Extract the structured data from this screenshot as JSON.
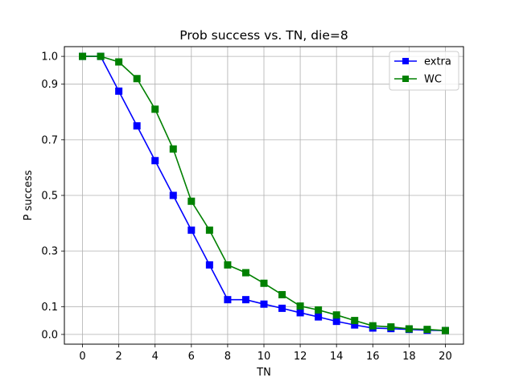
{
  "chart_data": {
    "type": "line",
    "title": "Prob success vs. TN, die=8",
    "xlabel": "TN",
    "ylabel": "P success",
    "xlim": [
      -1,
      21
    ],
    "ylim": [
      -0.035,
      1.035
    ],
    "xticks": [
      0,
      2,
      4,
      6,
      8,
      10,
      12,
      14,
      16,
      18,
      20
    ],
    "yticks": [
      0.0,
      0.1,
      0.3,
      0.5,
      0.7,
      0.9,
      1.0
    ],
    "ytick_labels": [
      "0.0",
      "0.1",
      "0.3",
      "0.5",
      "0.7",
      "0.9",
      "1.0"
    ],
    "grid": true,
    "legend_position": "top-right",
    "x": [
      0,
      1,
      2,
      3,
      4,
      5,
      6,
      7,
      8,
      9,
      10,
      11,
      12,
      13,
      14,
      15,
      16,
      17,
      18,
      19,
      20
    ],
    "series": [
      {
        "name": "extra",
        "color": "#0000ff",
        "marker": "square",
        "values": [
          1.0,
          1.0,
          0.875,
          0.75,
          0.625,
          0.5,
          0.375,
          0.25,
          0.125,
          0.125,
          0.109,
          0.094,
          0.078,
          0.063,
          0.047,
          0.034,
          0.023,
          0.021,
          0.018,
          0.015,
          0.014
        ]
      },
      {
        "name": "WC",
        "color": "#008000",
        "marker": "square",
        "values": [
          1.0,
          1.0,
          0.98,
          0.92,
          0.81,
          0.667,
          0.479,
          0.375,
          0.25,
          0.222,
          0.184,
          0.143,
          0.102,
          0.088,
          0.07,
          0.05,
          0.031,
          0.027,
          0.02,
          0.018,
          0.014
        ]
      }
    ]
  }
}
